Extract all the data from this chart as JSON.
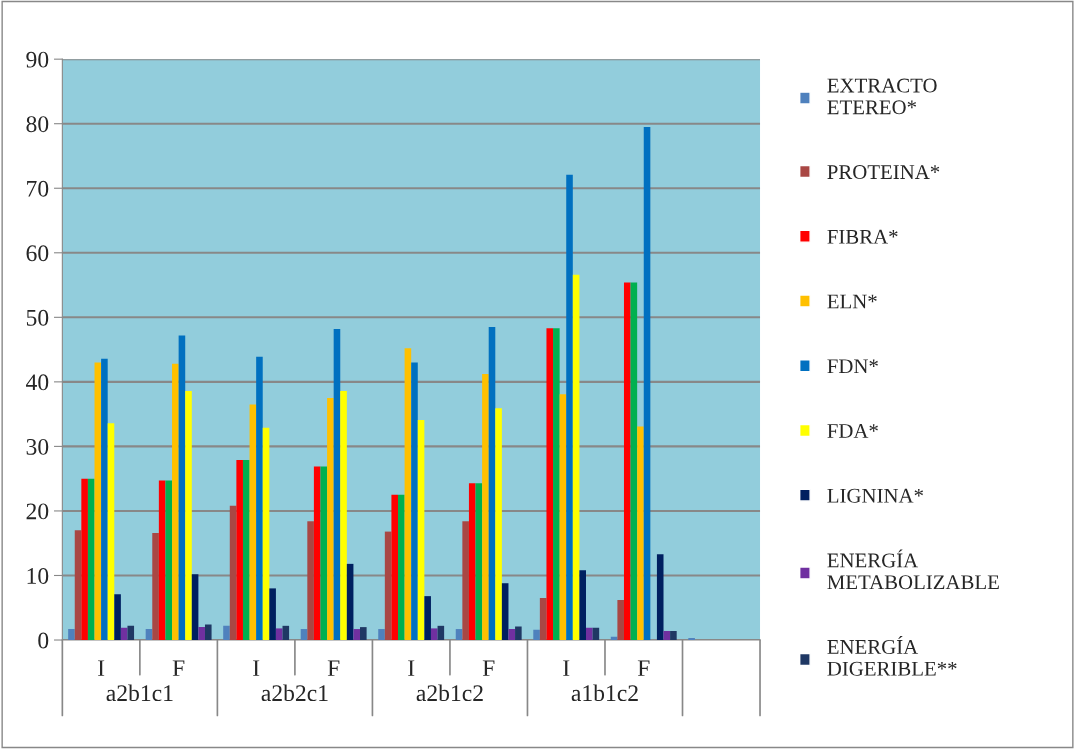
{
  "chart_data": {
    "type": "bar",
    "categories": [
      "I",
      "F",
      "I",
      "F",
      "I",
      "F",
      "I",
      "F",
      null
    ],
    "annotations": [
      "a2b1c1",
      "a2b2c1",
      "a2b1c2",
      "a1b1c2"
    ],
    "series": [
      {
        "name": "EXTRACTO ETEREO*",
        "color": "#4f81bd",
        "values": [
          1.7,
          1.7,
          2.2,
          1.7,
          1.7,
          1.7,
          1.6,
          0.5,
          0.3
        ]
      },
      {
        "name": "PROTEINA*",
        "color": "#a94744",
        "values": [
          17.0,
          16.6,
          20.8,
          18.4,
          16.8,
          18.4,
          6.5,
          6.2,
          null
        ]
      },
      {
        "name": "FIBRA*",
        "color": "#ff0000",
        "values": [
          25.0,
          24.7,
          27.9,
          26.9,
          22.5,
          24.3,
          48.3,
          55.4,
          null
        ]
      },
      {
        "color": "#00b050",
        "values": [
          25.0,
          24.7,
          27.9,
          26.9,
          22.5,
          24.3,
          48.3,
          55.4,
          null
        ]
      },
      {
        "name": "ELN*",
        "color": "#ffc000",
        "values": [
          43.0,
          42.8,
          36.5,
          37.5,
          45.2,
          41.2,
          38.1,
          33.1,
          null
        ]
      },
      {
        "name": "FDN*",
        "color": "#0070c0",
        "values": [
          43.6,
          47.2,
          43.9,
          48.2,
          43.0,
          48.5,
          72.1,
          79.5,
          null
        ]
      },
      {
        "name": "FDA*",
        "color": "#ffff00",
        "values": [
          33.6,
          38.6,
          32.9,
          38.6,
          34.1,
          35.9,
          56.6,
          null,
          null
        ]
      },
      {
        "name": "LIGNINA*",
        "color": "#002060",
        "values": [
          7.1,
          10.2,
          8.0,
          11.8,
          6.8,
          8.8,
          10.8,
          13.3,
          null
        ]
      },
      {
        "name": "ENERGÍA METABOLIZABLE",
        "color": "#7030a0",
        "values": [
          1.9,
          2.0,
          1.8,
          1.7,
          1.8,
          1.7,
          1.9,
          1.4,
          null
        ]
      },
      {
        "name": "ENERGÍA DIGERIBLE**",
        "color": "#1f3864",
        "values": [
          2.2,
          2.4,
          2.2,
          2.0,
          2.2,
          2.1,
          1.9,
          1.4,
          null
        ]
      }
    ],
    "ylim": [
      0,
      90
    ],
    "yticks": [
      0,
      10,
      20,
      30,
      40,
      50,
      60,
      70,
      80,
      90
    ],
    "grid": "y",
    "legend": "right"
  }
}
